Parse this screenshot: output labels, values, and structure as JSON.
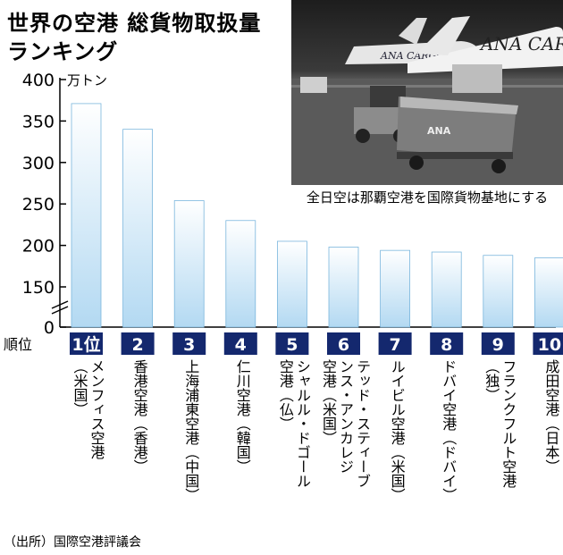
{
  "title_line1": "世界の空港 総貨物取扱量",
  "title_line2": "ランキング",
  "photo": {
    "caption": "全日空は那覇空港を国際貨物基地にする",
    "aircraft_text": [
      "ANA CARGO",
      "ANA CARGO",
      "ANA"
    ]
  },
  "rank_header": "順位",
  "unit": "万トン",
  "source": "（出所）国際空港評議会",
  "colors": {
    "bar_top": "#ffffff",
    "bar_bottom": "#b3d9f2",
    "bar_edge": "#7ab6dd",
    "rank_box": "#14286e"
  },
  "chart_data": {
    "type": "bar",
    "categories": [
      "メンフィス空港",
      "香港空港",
      "上海浦東空港",
      "仁川空港",
      "シャルル・ドゴール空港",
      "テッド・スティーブンス・アンカレジ空港",
      "ルイビル空港",
      "ドバイ空港",
      "フランクフルト空港",
      "成田空港"
    ],
    "values": [
      371,
      340,
      254,
      230,
      205,
      198,
      194,
      192,
      188,
      185
    ],
    "ylim": [
      0,
      400
    ],
    "y_axis_break": [
      0,
      150
    ],
    "yticks": [
      0,
      150,
      200,
      250,
      300,
      350,
      400
    ],
    "ylabel": "万トン",
    "ranks": [
      "1位",
      "2",
      "3",
      "4",
      "5",
      "6",
      "7",
      "8",
      "9",
      "10"
    ],
    "labels": [
      [
        "メンフィス空港",
        "（米国）"
      ],
      [
        "香港空港（香港）"
      ],
      [
        "上海浦東空港（中国）"
      ],
      [
        "仁川空港（韓国）"
      ],
      [
        "シャルル・ドゴール",
        "空港（仏）"
      ],
      [
        "テッド・スティーブ",
        "ンス・アンカレジ",
        "空港（米国）"
      ],
      [
        "ルイビル空港（米国）"
      ],
      [
        "ドバイ空港（ドバイ）"
      ],
      [
        "フランクフルト空港",
        "（独）"
      ],
      [
        "成田空港（日本）"
      ]
    ],
    "grid": false,
    "legend": "none"
  }
}
